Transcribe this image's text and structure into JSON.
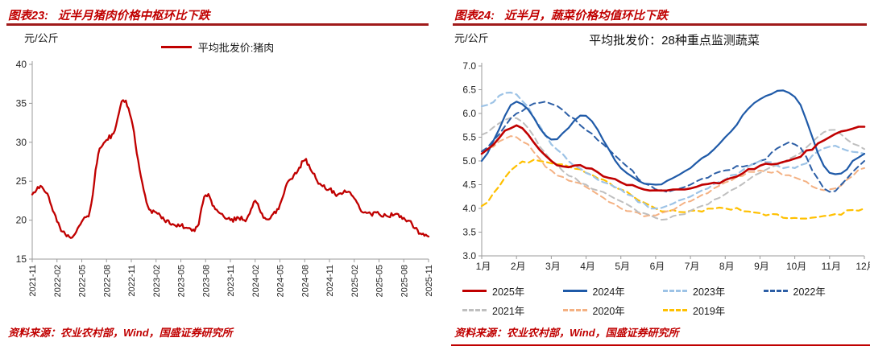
{
  "colors": {
    "title_red": "#c00000",
    "rule_dark_red": "#a01a1a",
    "bottom_rule_red": "#c00000",
    "axis_gray": "#9b9b9b",
    "text_dark": "#1f1f1f"
  },
  "left": {
    "figure_label": "图表23:",
    "figure_title": "近半月猪肉价格中枢环比下跌",
    "unit": "元/公斤",
    "legend_label": "平均批发价:猪肉",
    "source": "资料来源：农业农村部，Wind，国盛证券研究所"
  },
  "right": {
    "figure_label": "图表24:",
    "figure_title": "近半月，蔬菜价格均值环比下跌",
    "unit": "元/公斤",
    "chart_title": "平均批发价：28种重点监测蔬菜",
    "source": "资料来源：农业农村部，Wind，国盛证券研究所"
  },
  "chart_data": [
    {
      "id": "pork",
      "type": "line",
      "title": "平均批发价:猪肉",
      "ylabel": "元/公斤",
      "ylim": [
        15,
        40
      ],
      "ytick_step": 5,
      "y_decimals": 0,
      "grid": false,
      "legend_position": "top-center",
      "x_tick_every": 3,
      "x_tick_labels": [
        "2021-11",
        "2022-02",
        "2022-05",
        "2022-08",
        "2022-11",
        "2023-02",
        "2023-05",
        "2023-08",
        "2023-11",
        "2024-02",
        "2024-05",
        "2024-08",
        "2024-11",
        "2025-02",
        "2025-05",
        "2025-08",
        "2025-11"
      ],
      "series": [
        {
          "name": "平均批发价:猪肉",
          "color": "#c00000",
          "style": "solid",
          "width": 2.3,
          "values": [
            23.3,
            24.4,
            23.0,
            19.8,
            18.2,
            18.0,
            19.8,
            21.3,
            28.5,
            30.3,
            31.5,
            35.4,
            33.0,
            26.5,
            21.8,
            21.0,
            20.0,
            19.5,
            19.3,
            19.0,
            19.2,
            23.2,
            21.8,
            20.8,
            20.0,
            20.3,
            20.2,
            22.5,
            20.3,
            20.6,
            22.0,
            25.0,
            26.0,
            27.7,
            26.0,
            24.5,
            24.0,
            23.3,
            23.6,
            22.8,
            21.0,
            20.8,
            20.8,
            20.5,
            20.8,
            20.3,
            19.5,
            18.3,
            17.9
          ]
        }
      ]
    },
    {
      "id": "vegetables",
      "type": "line",
      "title": "平均批发价：28种重点监测蔬菜",
      "ylabel": "元/公斤",
      "ylim": [
        3.0,
        7.0
      ],
      "ytick_step": 0.5,
      "y_decimals": 1,
      "grid": false,
      "legend_position": "bottom",
      "categories": [
        "1月",
        "2月",
        "3月",
        "4月",
        "5月",
        "6月",
        "7月",
        "8月",
        "9月",
        "10月",
        "11月",
        "12月"
      ],
      "series": [
        {
          "name": "2025年",
          "color": "#c00000",
          "style": "solid",
          "width": 2.6,
          "values": [
            5.15,
            5.75,
            5.0,
            4.85,
            4.55,
            4.38,
            4.42,
            4.6,
            4.9,
            5.05,
            5.5,
            5.72
          ]
        },
        {
          "name": "2024年",
          "color": "#1f5aa8",
          "style": "solid",
          "width": 2.2,
          "values": [
            5.0,
            6.25,
            5.45,
            5.95,
            4.85,
            4.5,
            4.85,
            5.5,
            6.3,
            6.35,
            4.75,
            5.15
          ]
        },
        {
          "name": "2023年",
          "color": "#9dc3e6",
          "style": "dashed",
          "width": 2.2,
          "values": [
            6.15,
            6.4,
            5.35,
            4.75,
            4.4,
            4.0,
            4.25,
            4.6,
            5.0,
            4.85,
            5.3,
            5.15
          ]
        },
        {
          "name": "2022年",
          "color": "#2d5fa6",
          "style": "dashed",
          "width": 2.0,
          "values": [
            5.2,
            6.0,
            6.2,
            5.65,
            5.0,
            4.4,
            4.5,
            4.8,
            5.0,
            5.35,
            4.35,
            5.0
          ]
        },
        {
          "name": "2021年",
          "color": "#bfbfbf",
          "style": "dashed",
          "width": 2.0,
          "values": [
            5.55,
            5.9,
            5.0,
            4.5,
            4.15,
            3.8,
            3.95,
            4.3,
            4.75,
            5.1,
            5.65,
            5.25
          ]
        },
        {
          "name": "2020年",
          "color": "#f4b183",
          "style": "dashed",
          "width": 2.0,
          "values": [
            5.2,
            5.5,
            4.8,
            4.45,
            4.0,
            3.85,
            4.15,
            4.55,
            4.8,
            4.65,
            4.4,
            4.85
          ]
        },
        {
          "name": "2019年",
          "color": "#ffc000",
          "style": "dashed",
          "width": 2.2,
          "values": [
            4.05,
            4.9,
            4.95,
            4.75,
            4.4,
            4.0,
            3.95,
            4.0,
            3.9,
            3.8,
            3.85,
            4.0
          ]
        }
      ]
    }
  ]
}
